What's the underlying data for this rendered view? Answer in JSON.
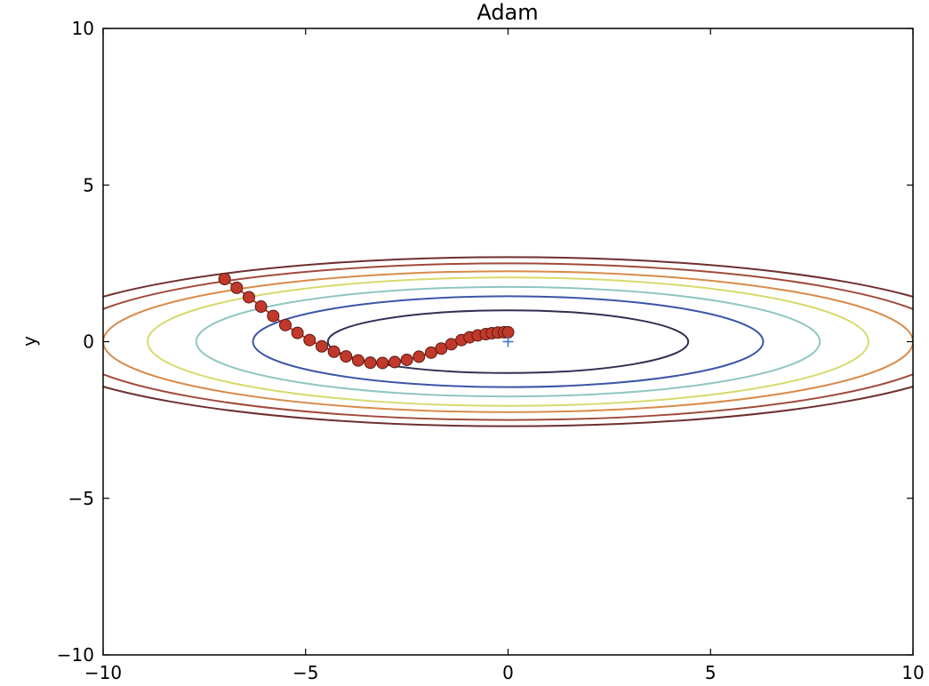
{
  "chart_data": {
    "type": "scatter",
    "title": "Adam",
    "xlabel": "",
    "ylabel": "y",
    "xlim": [
      -10,
      10
    ],
    "ylim": [
      -10,
      10
    ],
    "grid": false,
    "x_ticks": [
      {
        "value": -10,
        "label": "−10"
      },
      {
        "value": -5,
        "label": "−5"
      },
      {
        "value": 0,
        "label": "0"
      },
      {
        "value": 5,
        "label": "5"
      },
      {
        "value": 10,
        "label": "10"
      }
    ],
    "y_ticks": [
      {
        "value": -10,
        "label": "−10"
      },
      {
        "value": -5,
        "label": "−5"
      },
      {
        "value": 0,
        "label": "0"
      },
      {
        "value": 5,
        "label": "5"
      },
      {
        "value": 10,
        "label": "10"
      }
    ],
    "contours": [
      {
        "rx": 4.45,
        "ry": 1.0,
        "color": "#2f2f55"
      },
      {
        "rx": 6.3,
        "ry": 1.45,
        "color": "#3b55a8"
      },
      {
        "rx": 7.7,
        "ry": 1.75,
        "color": "#8fc6c2"
      },
      {
        "rx": 8.9,
        "ry": 2.05,
        "color": "#d7d96b"
      },
      {
        "rx": 10.0,
        "ry": 2.25,
        "color": "#d88a4a"
      },
      {
        "rx": 11.0,
        "ry": 2.5,
        "color": "#a04a3a"
      },
      {
        "rx": 11.8,
        "ry": 2.7,
        "color": "#6e2f2f"
      }
    ],
    "minimum_marker": {
      "x": 0,
      "y": 0,
      "color": "#3f6fd1"
    },
    "path": {
      "marker_color": "#c0392b",
      "marker_edge": "#5a1a12",
      "x": [
        -7.0,
        -6.7,
        -6.4,
        -6.1,
        -5.8,
        -5.5,
        -5.2,
        -4.9,
        -4.6,
        -4.3,
        -4.0,
        -3.7,
        -3.4,
        -3.1,
        -2.8,
        -2.5,
        -2.2,
        -1.9,
        -1.65,
        -1.4,
        -1.15,
        -0.95,
        -0.75,
        -0.55,
        -0.4,
        -0.25,
        -0.1,
        0.0
      ],
      "y": [
        2.0,
        1.72,
        1.42,
        1.12,
        0.82,
        0.53,
        0.28,
        0.05,
        -0.15,
        -0.32,
        -0.47,
        -0.6,
        -0.67,
        -0.68,
        -0.65,
        -0.58,
        -0.48,
        -0.35,
        -0.22,
        -0.08,
        0.05,
        0.14,
        0.2,
        0.24,
        0.27,
        0.29,
        0.3,
        0.3
      ]
    }
  }
}
